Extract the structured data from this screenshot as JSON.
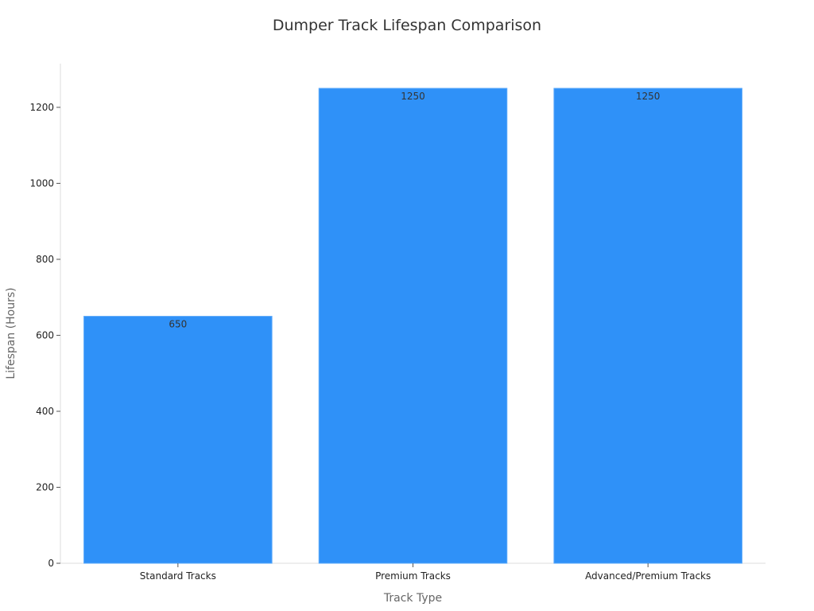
{
  "chart_data": {
    "type": "bar",
    "title": "Dumper Track Lifespan Comparison",
    "xlabel": "Track Type",
    "ylabel": "Lifespan (Hours)",
    "categories": [
      "Standard Tracks",
      "Premium Tracks",
      "Advanced/Premium Tracks"
    ],
    "values": [
      650,
      1250,
      1250
    ],
    "data_labels": [
      "650",
      "1250",
      "1250"
    ],
    "ylim": [
      0,
      1315
    ],
    "yticks": [
      0,
      200,
      400,
      600,
      800,
      1000,
      1200
    ],
    "grid": false,
    "bar_color": "#2f91f8"
  }
}
